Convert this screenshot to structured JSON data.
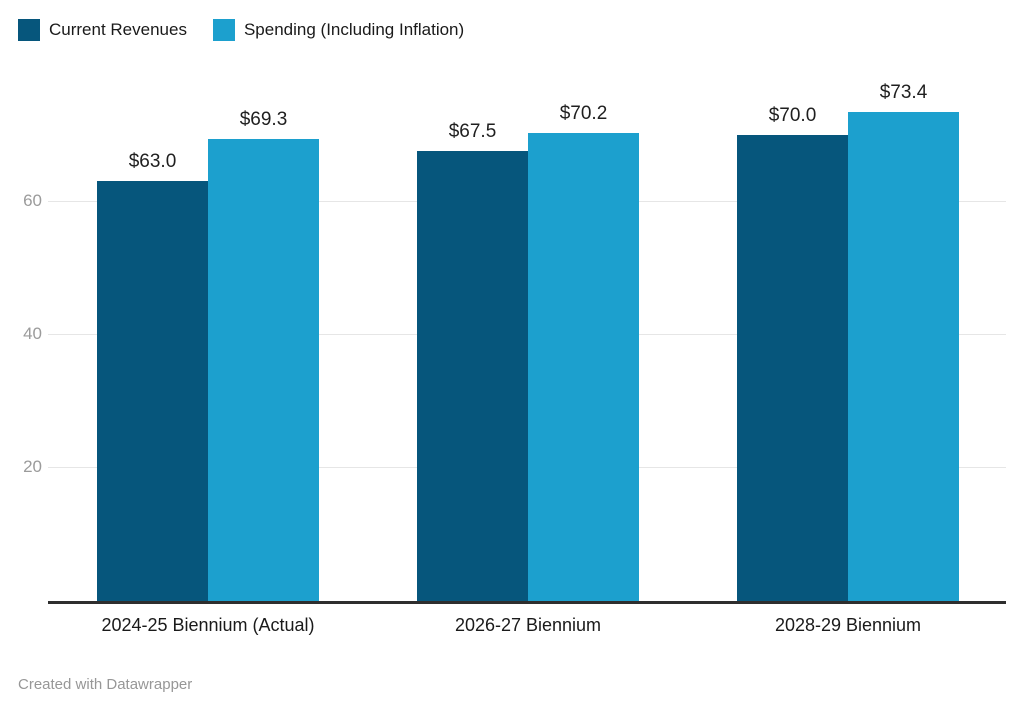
{
  "legend": {
    "items": [
      {
        "label": "Current Revenues",
        "color": "#06567C"
      },
      {
        "label": "Spending (Including Inflation)",
        "color": "#1CA0CE"
      }
    ]
  },
  "footer": {
    "credit": "Created with Datawrapper"
  },
  "chart_data": {
    "type": "bar",
    "title": "",
    "categories": [
      "2024-25 Biennium (Actual)",
      "2026-27 Biennium",
      "2028-29 Biennium"
    ],
    "series": [
      {
        "name": "Current Revenues",
        "color": "#06567C",
        "values": [
          63.0,
          67.5,
          70.0
        ],
        "value_labels": [
          "$63.0",
          "$67.5",
          "$70.0"
        ]
      },
      {
        "name": "Spending (Including Inflation)",
        "color": "#1CA0CE",
        "values": [
          69.3,
          70.2,
          73.4
        ],
        "value_labels": [
          "$69.3",
          "$70.2",
          "$73.4"
        ]
      }
    ],
    "y_axis": {
      "min": 0,
      "ticks": [
        20,
        40,
        60
      ],
      "grid": true,
      "tick_color": "#9b9b9b",
      "grid_color": "#e6e6e6"
    },
    "value_prefix": "$",
    "legend_position": "top-left"
  }
}
